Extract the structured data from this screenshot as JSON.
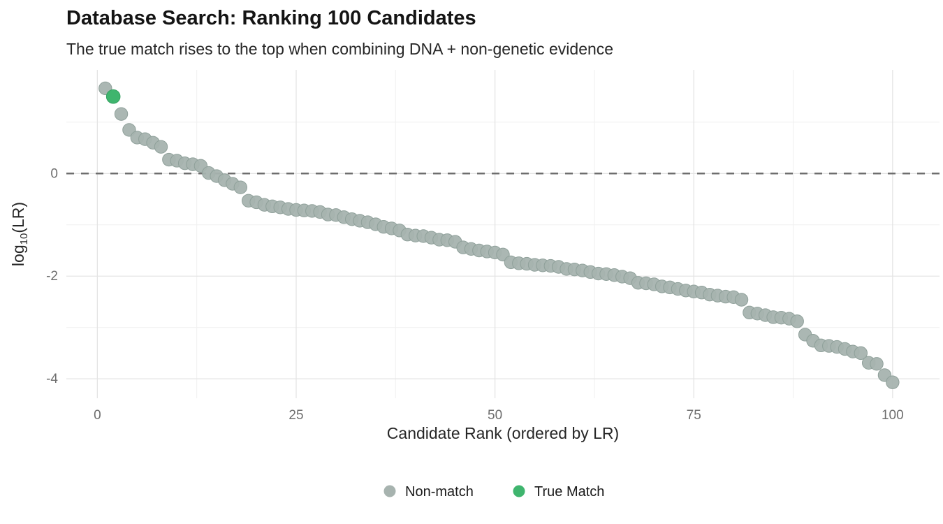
{
  "chart_data": {
    "type": "scatter",
    "title": "Database Search: Ranking 100 Candidates",
    "subtitle": "The true match rises to the top when combining DNA + non-genetic evidence",
    "xlabel": "Candidate Rank (ordered by LR)",
    "ylabel": {
      "text": "log10(LR)",
      "prefix": "log",
      "sub": "10",
      "suffix": "(LR)"
    },
    "xlim": [
      -3.9,
      105.9
    ],
    "ylim": [
      -4.38,
      2.02
    ],
    "x_ticks": [
      0,
      25,
      50,
      75,
      100
    ],
    "x_minor_gridlines": [
      12.5,
      37.5,
      62.5,
      87.5
    ],
    "y_ticks": [
      0,
      -2,
      -4
    ],
    "y_minor_gridlines": [
      1,
      -1,
      -3
    ],
    "grid": true,
    "reference_line_y": 0,
    "legend_position": "bottom-center",
    "true_match_rank": 2,
    "x_start_rank": 1,
    "values": [
      1.66,
      1.5,
      1.16,
      0.85,
      0.7,
      0.67,
      0.6,
      0.52,
      0.27,
      0.25,
      0.2,
      0.18,
      0.15,
      0.01,
      -0.05,
      -0.13,
      -0.2,
      -0.27,
      -0.53,
      -0.56,
      -0.61,
      -0.64,
      -0.66,
      -0.69,
      -0.71,
      -0.72,
      -0.73,
      -0.75,
      -0.8,
      -0.81,
      -0.85,
      -0.89,
      -0.92,
      -0.95,
      -0.99,
      -1.04,
      -1.07,
      -1.11,
      -1.19,
      -1.21,
      -1.22,
      -1.25,
      -1.29,
      -1.3,
      -1.33,
      -1.44,
      -1.47,
      -1.5,
      -1.52,
      -1.54,
      -1.58,
      -1.73,
      -1.75,
      -1.76,
      -1.78,
      -1.79,
      -1.8,
      -1.82,
      -1.86,
      -1.87,
      -1.89,
      -1.92,
      -1.95,
      -1.96,
      -1.98,
      -2.01,
      -2.04,
      -2.13,
      -2.14,
      -2.16,
      -2.2,
      -2.22,
      -2.25,
      -2.28,
      -2.3,
      -2.32,
      -2.36,
      -2.38,
      -2.4,
      -2.41,
      -2.46,
      -2.71,
      -2.73,
      -2.76,
      -2.8,
      -2.81,
      -2.83,
      -2.88,
      -3.14,
      -3.26,
      -3.35,
      -3.36,
      -3.38,
      -3.42,
      -3.47,
      -3.5,
      -3.69,
      -3.71,
      -3.93,
      -4.07
    ],
    "legend": [
      {
        "label": "Non-match",
        "color": "#a7b3af"
      },
      {
        "label": "True Match",
        "color": "#3fb56e"
      }
    ],
    "colors": {
      "non_match": "#a7b3af",
      "non_match_stroke": "#8fa09a",
      "true_match": "#3fb56e",
      "true_match_stroke": "#35a161",
      "reference_line": "#6b6b6b",
      "grid_major": "#e4e4e4",
      "grid_minor": "#f0f0f0"
    }
  }
}
